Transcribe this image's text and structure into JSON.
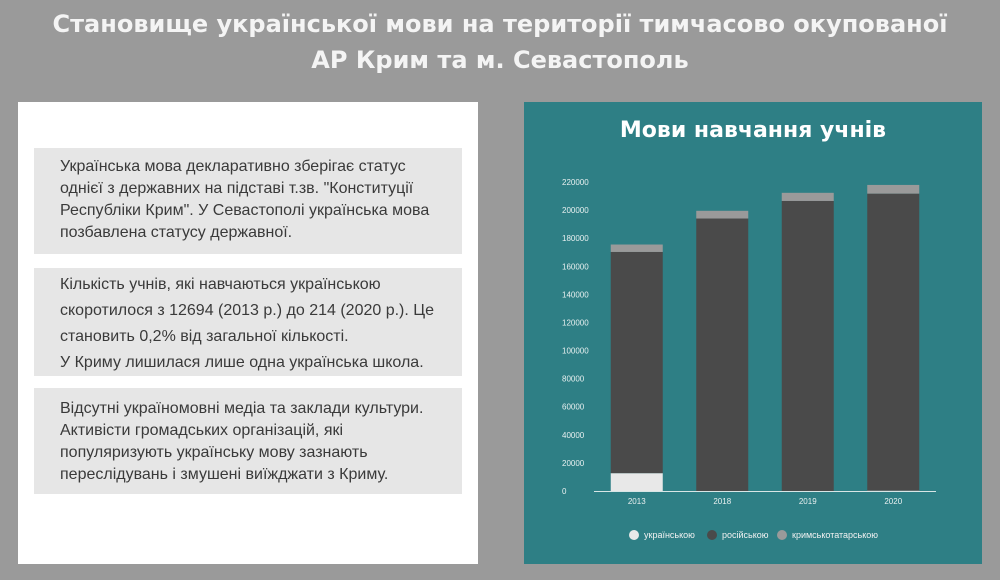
{
  "header": {
    "title_line1": "Становище української мови на території тимчасово окупованої",
    "title_line2": "АР Крим та м. Севастополь"
  },
  "info": {
    "box1": "Українська мова декларативно зберігає статус однієї з державних на підставі т.зв. \"Конституції Республіки Крим\". У Севастополі українська мова позбавлена статусу державної.",
    "box2_line1": "Кількість учнів, які навчаються українською скоротилося з 12694 (2013 р.) до 214 (2020 р.). Це становить 0,2% від загальної кількості.",
    "box2_line2": "У Криму лишилася лише одна українська школа.",
    "box3": "Відсутні україномовні медіа та заклади культури. Активісти громадських організацій, які популяризують українську мову зазнають переслідувань і змушені виїжджати з Криму."
  },
  "colors": {
    "panel_bg": "#2e7f85",
    "ukrainian": "#e8e8e8",
    "russian": "#4a4a4a",
    "crimean_tatar": "#9a9a9a"
  },
  "chart_data": {
    "type": "bar",
    "stacked": true,
    "title": "Мови навчання учнів",
    "categories": [
      "2013",
      "2018",
      "2019",
      "2020"
    ],
    "series": [
      {
        "name": "українською",
        "values": [
          12694,
          0,
          0,
          214
        ]
      },
      {
        "name": "російською",
        "values": [
          157500,
          194000,
          206500,
          211500
        ]
      },
      {
        "name": "кримськотатарською",
        "values": [
          5300,
          5500,
          5800,
          6200
        ]
      }
    ],
    "yticks": [
      "0",
      "20000",
      "40000",
      "60000",
      "80000",
      "100000",
      "120000",
      "140000",
      "160000",
      "180000",
      "200000",
      "220000"
    ],
    "ylim": [
      0,
      220000
    ],
    "legend_position": "bottom",
    "grid": false
  }
}
